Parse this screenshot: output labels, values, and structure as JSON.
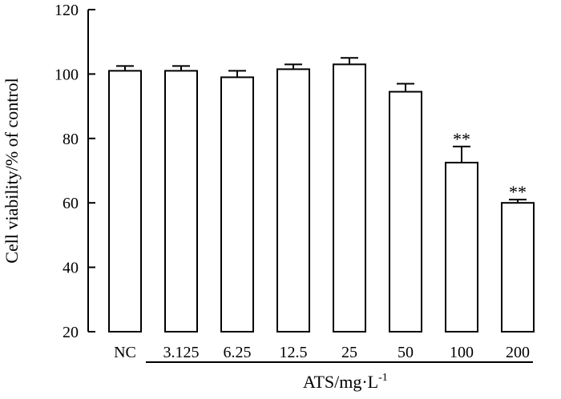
{
  "chart_data": {
    "type": "bar",
    "categories": [
      "NC",
      "3.125",
      "6.25",
      "12.5",
      "25",
      "50",
      "100",
      "200"
    ],
    "values": [
      101,
      101,
      99,
      101.5,
      103,
      94.5,
      72.5,
      60
    ],
    "errors": [
      1.5,
      1.5,
      2,
      1.5,
      2,
      2.5,
      5,
      1
    ],
    "annotations": [
      "",
      "",
      "",
      "",
      "",
      "",
      "**",
      "**"
    ],
    "ylabel": "Cell viability/% of control",
    "xlabel_main": "ATS/mg·L",
    "xlabel_superscript": "-1",
    "ylim": [
      20,
      120
    ],
    "yticks": [
      "20",
      "40",
      "60",
      "80",
      "100",
      "120"
    ],
    "grid": false,
    "bar_color": "#ffffff",
    "line_color": "#000000"
  }
}
